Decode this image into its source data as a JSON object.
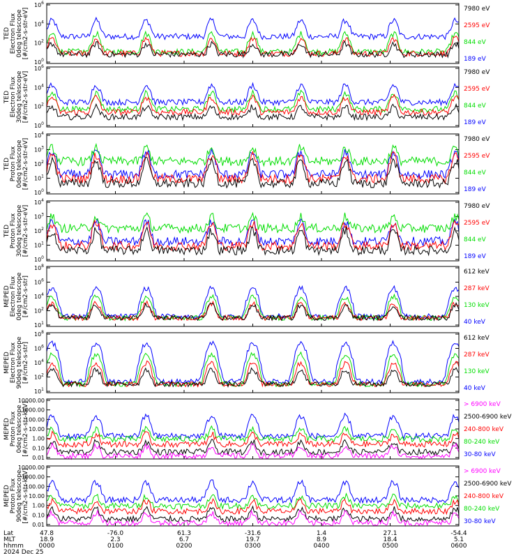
{
  "chart_data": [
    {
      "type": "line",
      "ylabel": [
        "TED",
        "Electron Flux",
        "0deg telescope",
        "[#/cm2-s-str-eV]"
      ],
      "y_tick_labels": [
        "10^6",
        "10^4",
        "10^2",
        "10^0"
      ],
      "log_scale": true,
      "ylim": [
        1,
        1000000
      ],
      "series": [
        {
          "name": "7980 eV",
          "color": "#000000",
          "base": 8,
          "peak_factor": 12
        },
        {
          "name": "2595 eV",
          "color": "#ff0000",
          "base": 10,
          "peak_factor": 30
        },
        {
          "name": "844 eV",
          "color": "#00dd00",
          "base": 15,
          "peak_factor": 60
        },
        {
          "name": "189 eV",
          "color": "#0000ff",
          "base": 500,
          "peak_factor": 40
        }
      ]
    },
    {
      "type": "line",
      "ylabel": [
        "TED",
        "Electron Flux",
        "30deg telescope",
        "[#/cm2-s-str-eV]"
      ],
      "y_tick_labels": [
        "10^6",
        "10^4",
        "10^2",
        "10^0"
      ],
      "log_scale": true,
      "ylim": [
        1,
        1000000
      ],
      "series": [
        {
          "name": "7980 eV",
          "color": "#000000",
          "base": 10,
          "peak_factor": 10
        },
        {
          "name": "2595 eV",
          "color": "#ff0000",
          "base": 30,
          "peak_factor": 30
        },
        {
          "name": "844 eV",
          "color": "#00dd00",
          "base": 60,
          "peak_factor": 40
        },
        {
          "name": "189 eV",
          "color": "#0000ff",
          "base": 300,
          "peak_factor": 50
        }
      ]
    },
    {
      "type": "line",
      "ylabel": [
        "TED",
        "Proton Flux",
        "0deg telescope",
        "[#/cm2-s-str-eV]"
      ],
      "y_tick_labels": [
        "10^4",
        "10^3",
        "10^2",
        "10^1",
        "10^0"
      ],
      "log_scale": true,
      "ylim": [
        1,
        10000
      ],
      "series": [
        {
          "name": "7980 eV",
          "color": "#000000",
          "base": 5,
          "peak_factor": 30
        },
        {
          "name": "2595 eV",
          "color": "#ff0000",
          "base": 10,
          "peak_factor": 40
        },
        {
          "name": "844 eV",
          "color": "#00dd00",
          "base": 150,
          "peak_factor": 8
        },
        {
          "name": "189 eV",
          "color": "#0000ff",
          "base": 20,
          "peak_factor": 30
        }
      ]
    },
    {
      "type": "line",
      "ylabel": [
        "TED",
        "Proton Flux",
        "30deg telescope",
        "[#/cm2-s-str-eV]"
      ],
      "y_tick_labels": [
        "10^4",
        "10^3",
        "10^2",
        "10^1",
        "10^0"
      ],
      "log_scale": true,
      "ylim": [
        1,
        10000
      ],
      "series": [
        {
          "name": "7980 eV",
          "color": "#000000",
          "base": 5,
          "peak_factor": 20
        },
        {
          "name": "2595 eV",
          "color": "#ff0000",
          "base": 10,
          "peak_factor": 30
        },
        {
          "name": "844 eV",
          "color": "#00dd00",
          "base": 150,
          "peak_factor": 6
        },
        {
          "name": "189 eV",
          "color": "#0000ff",
          "base": 20,
          "peak_factor": 20
        }
      ]
    },
    {
      "type": "line",
      "ylabel": [
        "MEPED",
        "Electron Flux",
        "0deg telescope",
        "[#/cm2-s-str]"
      ],
      "y_tick_labels": [
        "10^8",
        "10^6",
        "10^4",
        "10^2",
        "10^1"
      ],
      "log_scale": true,
      "ylim": [
        10,
        100000000
      ],
      "series": [
        {
          "name": "612 keV",
          "color": "#000000",
          "base": 100,
          "peak_factor": 30
        },
        {
          "name": "287 keV",
          "color": "#ff0000",
          "base": 100,
          "peak_factor": 50
        },
        {
          "name": "130 keV",
          "color": "#00dd00",
          "base": 100,
          "peak_factor": 300
        },
        {
          "name": "40 keV",
          "color": "#0000ff",
          "base": 150,
          "peak_factor": 2000
        }
      ]
    },
    {
      "type": "line",
      "ylabel": [
        "MEPED",
        "Electron Flux",
        "90deg telescope",
        "[#/cm2-s-str]"
      ],
      "y_tick_labels": [
        "10^8",
        "10^6",
        "10^4",
        "10^2",
        "10^1"
      ],
      "log_scale": true,
      "ylim": [
        10,
        100000000
      ],
      "series": [
        {
          "name": "612 keV",
          "color": "#000000",
          "base": 100,
          "peak_factor": 50
        },
        {
          "name": "287 keV",
          "color": "#ff0000",
          "base": 100,
          "peak_factor": 300
        },
        {
          "name": "130 keV",
          "color": "#00dd00",
          "base": 100,
          "peak_factor": 3000
        },
        {
          "name": "40 keV",
          "color": "#0000ff",
          "base": 200,
          "peak_factor": 30000
        }
      ]
    },
    {
      "type": "line",
      "ylabel": [
        "MEPED",
        "Proton Flux",
        "0deg telescope",
        "[#/cm2-s-str-keV]"
      ],
      "y_tick_labels": [
        "10000.00",
        "1000.00",
        "100.00",
        "10.00",
        "1.00",
        "0.10",
        "0.01"
      ],
      "log_scale": true,
      "ylim": [
        0.01,
        10000
      ],
      "series": [
        {
          "name": "> 6900 keV",
          "color": "#ff00ff",
          "base": 0.02,
          "peak_factor": 10
        },
        {
          "name": "2500-6900 keV",
          "color": "#000000",
          "base": 0.05,
          "peak_factor": 10
        },
        {
          "name": "240-800 keV",
          "color": "#ff0000",
          "base": 0.3,
          "peak_factor": 10
        },
        {
          "name": "80-240 keV",
          "color": "#00dd00",
          "base": 1.0,
          "peak_factor": 10
        },
        {
          "name": "30-80 keV",
          "color": "#0000ff",
          "base": 2.0,
          "peak_factor": 100
        }
      ]
    },
    {
      "type": "line",
      "ylabel": [
        "MEPED",
        "Proton Flux",
        "90deg telescope",
        "[#/cm2-s-str-keV]"
      ],
      "y_tick_labels": [
        "10000.00",
        "1000.00",
        "100.00",
        "10.00",
        "1.00",
        "0.10",
        "0.01"
      ],
      "log_scale": true,
      "ylim": [
        0.01,
        10000
      ],
      "series": [
        {
          "name": "> 6900 keV",
          "color": "#ff00ff",
          "base": 0.02,
          "peak_factor": 10
        },
        {
          "name": "2500-6900 keV",
          "color": "#000000",
          "base": 0.05,
          "peak_factor": 10
        },
        {
          "name": "240-800 keV",
          "color": "#ff0000",
          "base": 0.3,
          "peak_factor": 10
        },
        {
          "name": "80-240 keV",
          "color": "#00dd00",
          "base": 1.0,
          "peak_factor": 10
        },
        {
          "name": "30-80 keV",
          "color": "#0000ff",
          "base": 4.0,
          "peak_factor": 60
        }
      ]
    }
  ],
  "x_axis": {
    "row_labels": [
      "Lat",
      "MLT",
      "hhmm",
      "2024 Dec 25"
    ],
    "ticks": [
      {
        "time_hours": 0,
        "lat": "47.8",
        "mlt": "18.9",
        "hhmm": "0000"
      },
      {
        "time_hours": 1,
        "lat": "-76.0",
        "mlt": "2.3",
        "hhmm": "0100"
      },
      {
        "time_hours": 2,
        "lat": "61.3",
        "mlt": "6.7",
        "hhmm": "0200"
      },
      {
        "time_hours": 3,
        "lat": "-31.6",
        "mlt": "19.7",
        "hhmm": "0300"
      },
      {
        "time_hours": 4,
        "lat": "1.4",
        "mlt": "8.9",
        "hhmm": "0400"
      },
      {
        "time_hours": 5,
        "lat": "27.1",
        "mlt": "18.4",
        "hhmm": "0500"
      },
      {
        "time_hours": 6,
        "lat": "-54.4",
        "mlt": "5.1",
        "hhmm": "0600"
      }
    ],
    "range_hours": [
      0,
      6
    ]
  },
  "passes_hours": [
    0.08,
    0.72,
    1.45,
    2.4,
    3.0,
    3.7,
    4.35,
    5.05,
    5.95
  ]
}
